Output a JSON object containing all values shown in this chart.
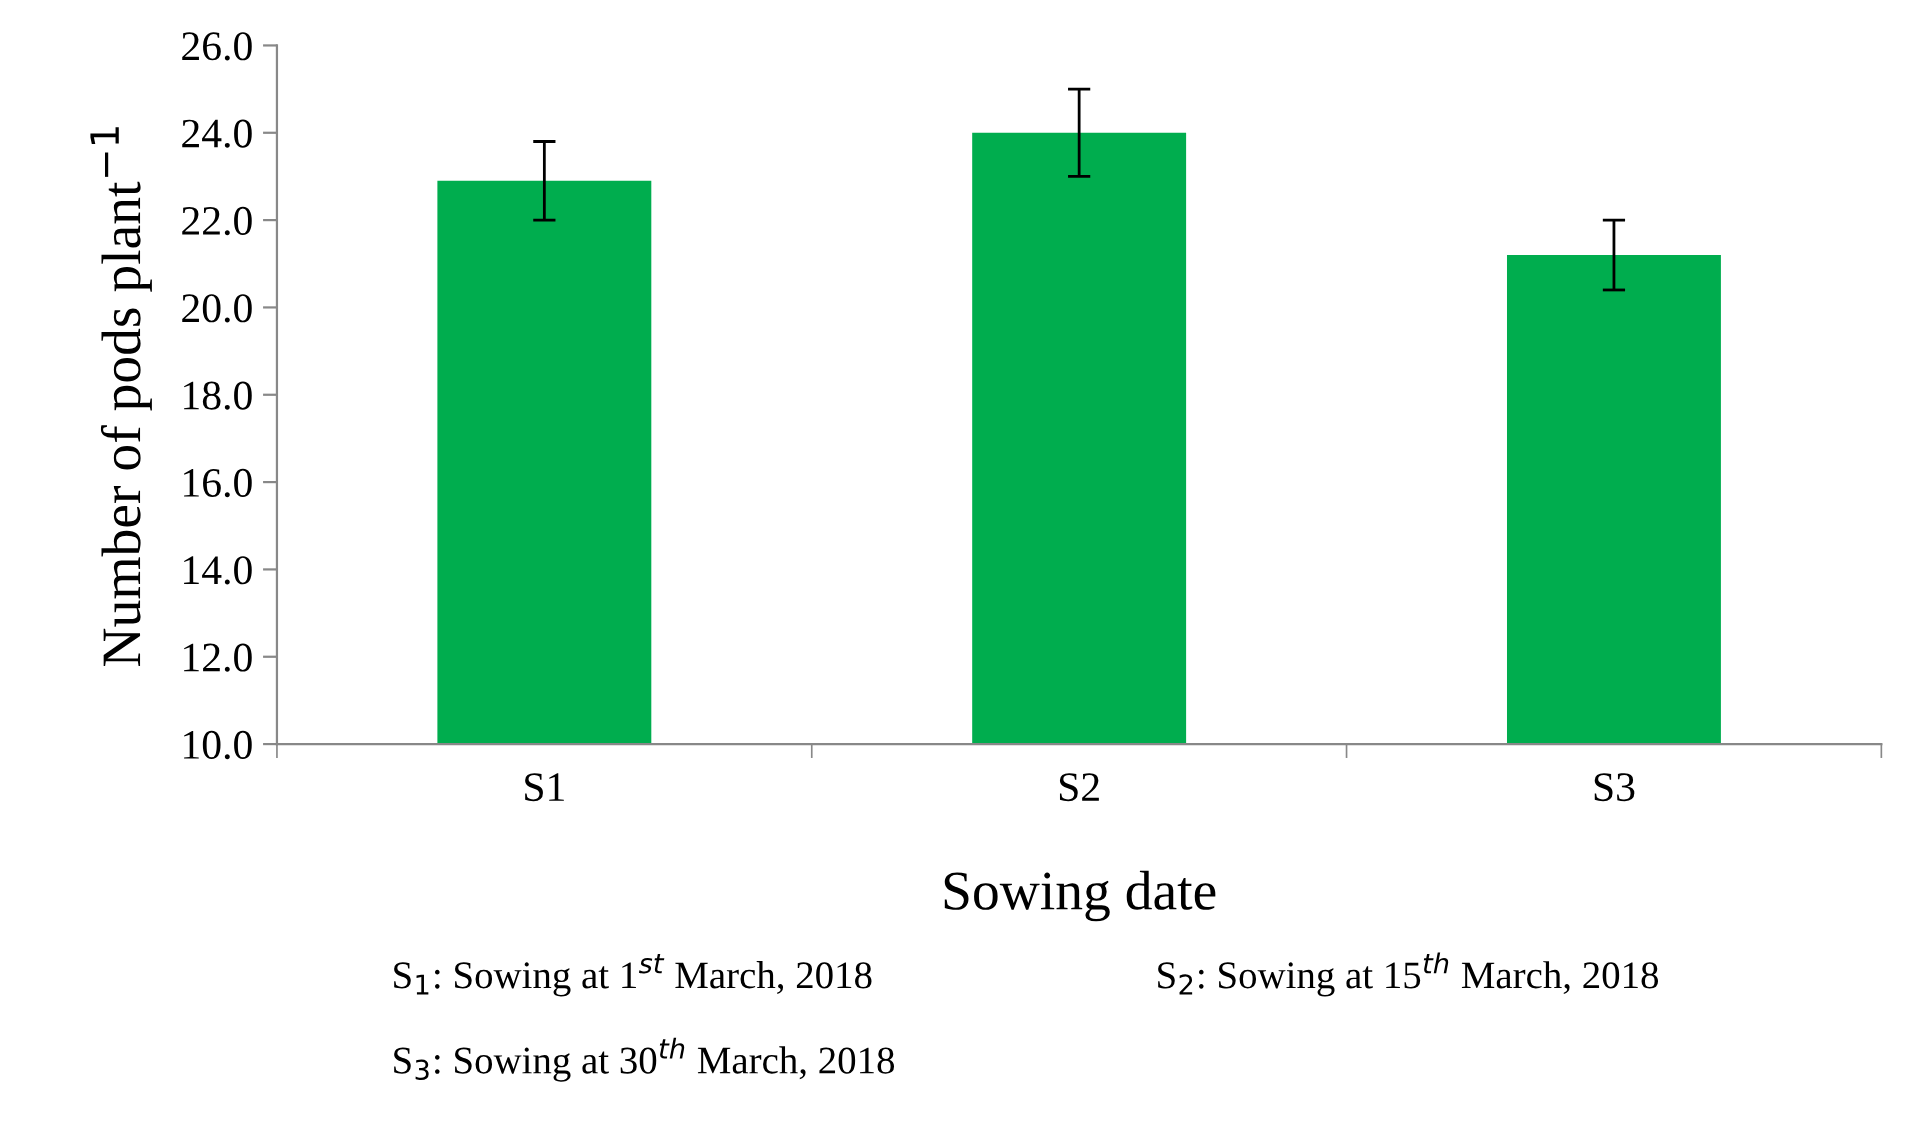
{
  "chart_data": {
    "type": "bar",
    "categories": [
      "S1",
      "S2",
      "S3"
    ],
    "values": [
      22.9,
      24.0,
      21.2
    ],
    "errors": [
      0.9,
      1.0,
      0.8
    ],
    "color": "#00ad4e",
    "xlabel": "Sowing date",
    "ylabel": "Number of pods plant$^{−1}$",
    "ylim": [
      10,
      26
    ],
    "yticks": [
      {
        "value": 10,
        "label": "10.0"
      },
      {
        "value": 12,
        "label": "12.0"
      },
      {
        "value": 14,
        "label": "14.0"
      },
      {
        "value": 16,
        "label": "16.0"
      },
      {
        "value": 18,
        "label": "18.0"
      },
      {
        "value": 20,
        "label": "20.0"
      },
      {
        "value": 22,
        "label": "22.0"
      },
      {
        "value": 24,
        "label": "24.0"
      },
      {
        "value": 26,
        "label": "26.0"
      }
    ],
    "grid": false,
    "annotations": [
      "S$_{1}$: Sowing at 1$^{st}$ March, 2018",
      "S$_{2}$: Sowing at 15$^{th}$ March, 2018",
      "S$_{3}$: Sowing at 30$^{th}$ March, 2018"
    ]
  }
}
